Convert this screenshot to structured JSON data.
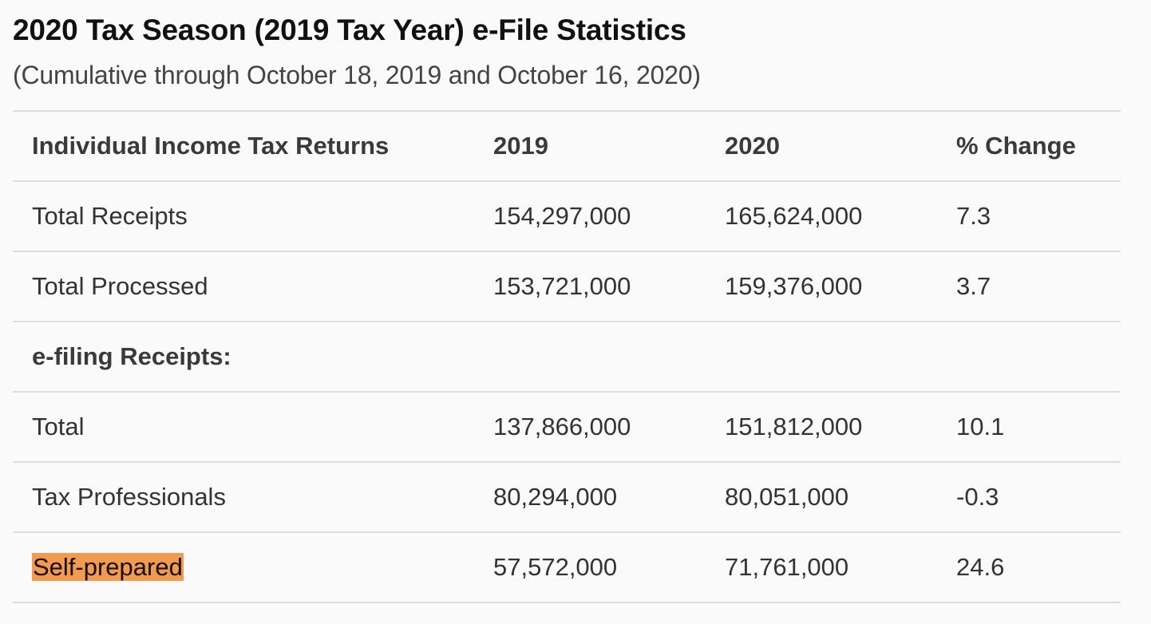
{
  "title": "2020 Tax Season (2019 Tax Year) e-File Statistics",
  "subtitle": "(Cumulative through October 18, 2019 and October 16, 2020)",
  "table": {
    "headers": [
      "Individual Income Tax Returns",
      "2019",
      "2020",
      "% Change"
    ],
    "rows": [
      {
        "label": "Total Receipts",
        "y2019": "154,297,000",
        "y2020": "165,624,000",
        "change": "7.3"
      },
      {
        "label": "Total Processed",
        "y2019": "153,721,000",
        "y2020": "159,376,000",
        "change": "3.7"
      },
      {
        "label": "e-filing Receipts:"
      },
      {
        "label": "Total",
        "y2019": "137,866,000",
        "y2020": "151,812,000",
        "change": "10.1"
      },
      {
        "label": "Tax Professionals",
        "y2019": "80,294,000",
        "y2020": "80,051,000",
        "change": "-0.3"
      },
      {
        "label": "Self-prepared",
        "y2019": "57,572,000",
        "y2020": "71,761,000",
        "change": "24.6"
      }
    ]
  },
  "colors": {
    "highlight": "#f39a4c",
    "rule": "#dddddd",
    "text": "#333333",
    "background": "#fafafa"
  }
}
